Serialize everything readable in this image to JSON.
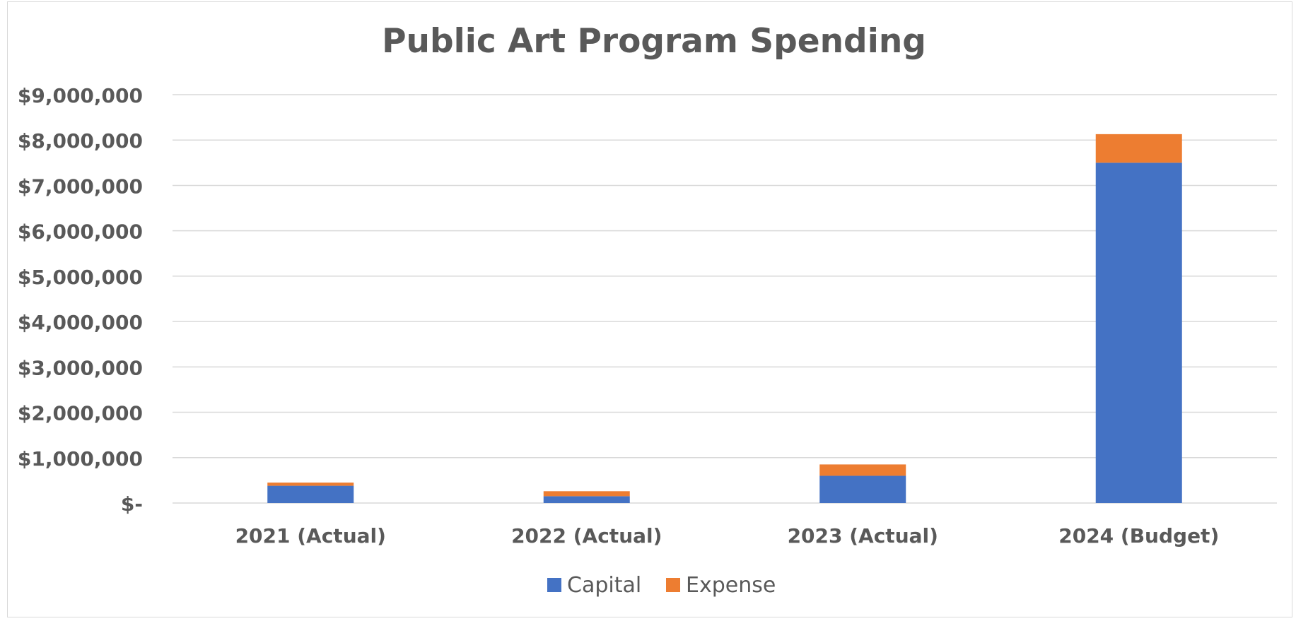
{
  "chart_data": {
    "type": "bar",
    "stacked": true,
    "title": "Public Art Program Spending",
    "xlabel": "",
    "ylabel": "",
    "categories": [
      "2021 (Actual)",
      "2022 (Actual)",
      "2023 (Actual)",
      "2024 (Budget)"
    ],
    "series": [
      {
        "name": "Capital",
        "values": [
          380000,
          150000,
          600000,
          7500000
        ],
        "color": "#4472c4"
      },
      {
        "name": "Expense",
        "values": [
          70000,
          110000,
          250000,
          630000
        ],
        "color": "#ed7d31"
      }
    ],
    "ylim": [
      0,
      9000000
    ],
    "yticks": [
      0,
      1000000,
      2000000,
      3000000,
      4000000,
      5000000,
      6000000,
      7000000,
      8000000,
      9000000
    ],
    "ytick_labels": [
      "$-",
      "$1,000,000",
      "$2,000,000",
      "$3,000,000",
      "$4,000,000",
      "$5,000,000",
      "$6,000,000",
      "$7,000,000",
      "$8,000,000",
      "$9,000,000"
    ],
    "grid": true,
    "legend_position": "bottom"
  },
  "colors": {
    "gridline": "#d9d9d9",
    "text": "#595959"
  }
}
